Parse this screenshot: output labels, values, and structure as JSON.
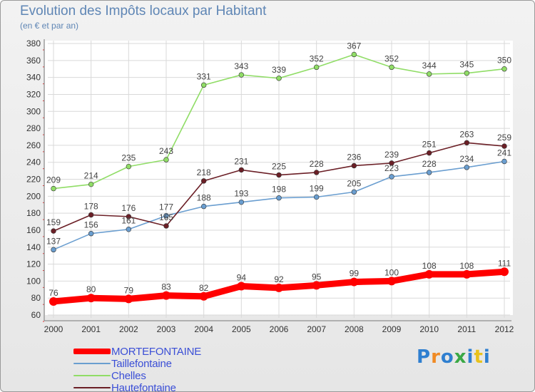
{
  "title": "Evolution des Impôts locaux par Habitant",
  "subtitle": "(en € et par an)",
  "logo": {
    "text": "Proxiti",
    "letter_colors": [
      "#2f7fd0",
      "#f08a24",
      "#2f7fd0",
      "#3aa845",
      "#2f7fd0",
      "#e8c21c",
      "#2f7fd0"
    ]
  },
  "chart_data": {
    "type": "line",
    "title": "Evolution des Impôts locaux par Habitant",
    "subtitle": "(en € et par an)",
    "xlabel": "",
    "ylabel": "",
    "x": [
      "2000",
      "2001",
      "2002",
      "2003",
      "2004",
      "2005",
      "2006",
      "2007",
      "2008",
      "2009",
      "2010",
      "2011",
      "2012"
    ],
    "yticks": [
      60,
      80,
      100,
      120,
      140,
      160,
      180,
      200,
      220,
      240,
      260,
      280,
      300,
      320,
      340,
      360,
      380
    ],
    "ylim": [
      60,
      380
    ],
    "grid": true,
    "legend_position": "bottom-left",
    "series": [
      {
        "name": "MORTEFONTAINE",
        "color": "#ff0000",
        "values": [
          76,
          80,
          79,
          83,
          82,
          94,
          92,
          95,
          99,
          100,
          108,
          108,
          111
        ],
        "labels": [
          "76",
          "80",
          "79",
          "83",
          "82",
          "94",
          "92",
          "95",
          "99",
          "100",
          "108",
          "108",
          "111"
        ]
      },
      {
        "name": "Taillefontaine",
        "color": "#6a9ed0",
        "values": [
          137,
          156,
          161,
          177,
          188,
          193,
          198,
          199,
          205,
          223,
          228,
          234,
          241
        ],
        "labels": [
          "137",
          "156",
          "161",
          "177",
          "188",
          "193",
          "198",
          "199",
          "205",
          "223",
          "228",
          "234",
          "241"
        ]
      },
      {
        "name": "Chelles",
        "color": "#90dd66",
        "values": [
          209,
          214,
          235,
          243,
          331,
          343,
          339,
          352,
          367,
          352,
          344,
          345,
          350
        ],
        "labels": [
          "209",
          "214",
          "235",
          "243",
          "331",
          "343",
          "339",
          "352",
          "367",
          "352",
          "344",
          "345",
          "350"
        ]
      },
      {
        "name": "Hautefontaine",
        "color": "#6b1f26",
        "values": [
          159,
          178,
          176,
          165,
          218,
          231,
          225,
          228,
          236,
          239,
          251,
          263,
          259
        ],
        "labels": [
          "159",
          "178",
          "176",
          "165",
          "218",
          "231",
          "225",
          "228",
          "236",
          "239",
          "251",
          "263",
          "259"
        ]
      }
    ]
  }
}
